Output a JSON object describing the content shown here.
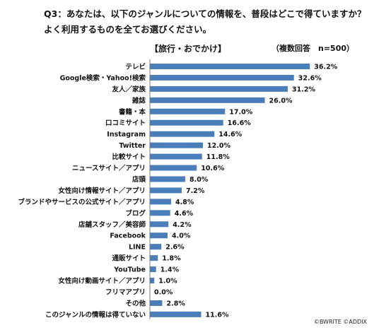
{
  "header": {
    "question_line1": "Q3：あなたは、以下のジャンルについての情報を、普段はどこで得ていますか？",
    "question_line2": "よく利用するものを全てお選びください。",
    "category": "【旅行・おでかけ】",
    "note": "（複数回答　n=500）"
  },
  "footer": {
    "credit": "©BWRITE ©ADDIX"
  },
  "colors": {
    "bar": "#4a7ebb",
    "axis": "#777777"
  },
  "chart_data": {
    "type": "bar",
    "orientation": "horizontal",
    "categories": [
      "テレビ",
      "Google検索・Yahoo!検索",
      "友人／家族",
      "雑誌",
      "書籍・本",
      "口コミサイト",
      "Instagram",
      "Twitter",
      "比較サイト",
      "ニュースサイト／アプリ",
      "店頭",
      "女性向け情報サイト／アプリ",
      "ブランドやサービスの公式サイト／アプリ",
      "ブログ",
      "店舗スタッフ／美容師",
      "Facebook",
      "LINE",
      "通販サイト",
      "YouTube",
      "女性向け動画サイト／アプリ",
      "フリマアプリ",
      "その他",
      "このジャンルの情報は得ていない"
    ],
    "values": [
      36.2,
      32.6,
      31.2,
      26.0,
      17.0,
      16.6,
      14.6,
      12.0,
      11.8,
      10.6,
      8.0,
      7.2,
      4.8,
      4.6,
      4.2,
      4.0,
      2.6,
      1.8,
      1.4,
      1.0,
      0.0,
      2.8,
      11.6
    ],
    "labels": [
      "36.2%",
      "32.6%",
      "31.2%",
      "26.0%",
      "17.0%",
      "16.6%",
      "14.6%",
      "12.0%",
      "11.8%",
      "10.6%",
      "8.0%",
      "7.2%",
      "4.8%",
      "4.6%",
      "4.2%",
      "4.0%",
      "2.6%",
      "1.8%",
      "1.4%",
      "1.0%",
      "0.0%",
      "2.8%",
      "11.6%"
    ],
    "xlim": [
      0,
      40
    ],
    "grid": false,
    "legend": "none"
  }
}
